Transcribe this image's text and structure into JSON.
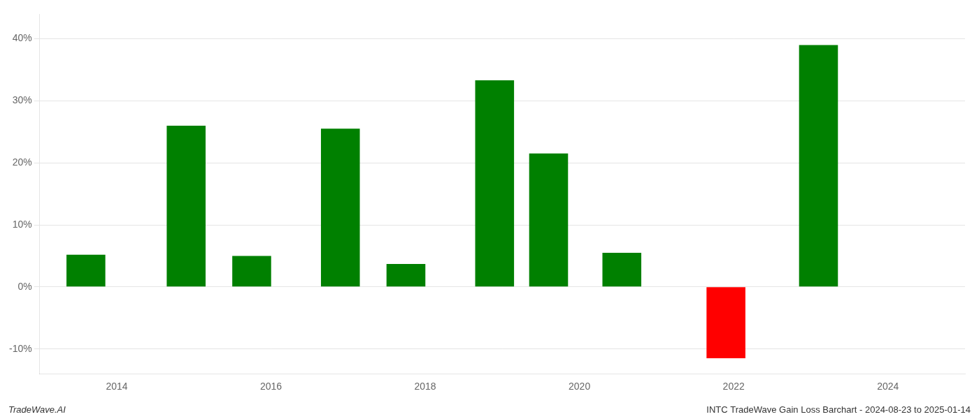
{
  "chart_data": {
    "type": "bar",
    "x": [
      2013.6,
      2014.9,
      2015.75,
      2016.9,
      2017.75,
      2018.9,
      2019.6,
      2020.55,
      2021.9,
      2023.1
    ],
    "values": [
      5.2,
      26.0,
      5.0,
      25.5,
      3.7,
      33.3,
      21.5,
      5.5,
      -11.5,
      39.0
    ],
    "colors": [
      "#008000",
      "#008000",
      "#008000",
      "#008000",
      "#008000",
      "#008000",
      "#008000",
      "#008000",
      "#ff0000",
      "#008000"
    ],
    "xlim": [
      2013.0,
      2025.0
    ],
    "xticks": [
      2014,
      2016,
      2018,
      2020,
      2022,
      2024
    ],
    "ylim": [
      -14,
      44
    ],
    "yticks": [
      {
        "value": -10,
        "label": "-10%"
      },
      {
        "value": 0,
        "label": "0%"
      },
      {
        "value": 10,
        "label": "10%"
      },
      {
        "value": 20,
        "label": "20%"
      },
      {
        "value": 30,
        "label": "30%"
      },
      {
        "value": 40,
        "label": "40%"
      }
    ],
    "grid": "y",
    "annotations": [
      "TradeWave.AI",
      "INTC TradeWave Gain Loss Barchart - 2024-08-23 to 2025-01-14"
    ]
  }
}
